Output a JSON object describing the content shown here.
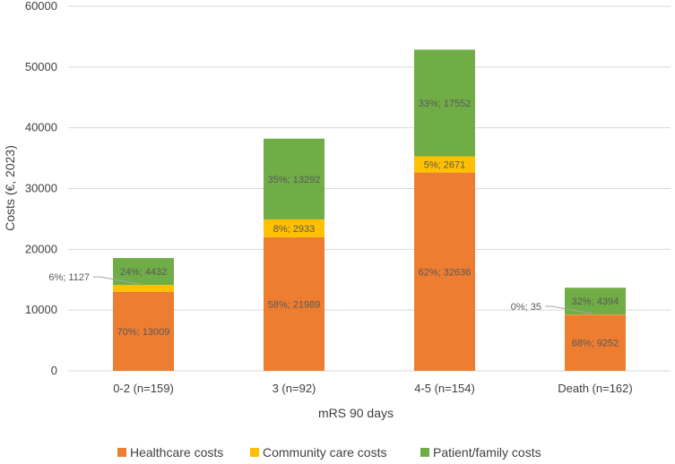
{
  "chart_data": {
    "type": "stacked-bar",
    "title": "",
    "xlabel": "mRS 90 days",
    "ylabel": "Costs (€, 2023)",
    "ylim": [
      0,
      60000
    ],
    "yticks": [
      0,
      10000,
      20000,
      30000,
      40000,
      50000,
      60000
    ],
    "grid": true,
    "legend_position": "bottom",
    "categories": [
      "0-2 (n=159)",
      "3 (n=92)",
      "4-5 (n=154)",
      "Death (n=162)"
    ],
    "series": [
      {
        "name": "Healthcare costs",
        "color": "#ed7d31",
        "values": [
          13009,
          21989,
          32636,
          9252
        ],
        "labels": [
          "70%; 13009",
          "58%; 21989",
          "62%; 32636",
          "68%; 9252"
        ]
      },
      {
        "name": "Community care costs",
        "color": "#ffc000",
        "values": [
          1127,
          2933,
          2671,
          35
        ],
        "labels": [
          "6%; 1127",
          "8%; 2933",
          "5%; 2671",
          "0%; 35"
        ]
      },
      {
        "name": "Patient/family costs",
        "color": "#70ad47",
        "values": [
          4432,
          13292,
          17552,
          4394
        ],
        "labels": [
          "24%; 4432",
          "35%; 13292",
          "33%; 17552",
          "32%; 4394"
        ]
      }
    ]
  }
}
